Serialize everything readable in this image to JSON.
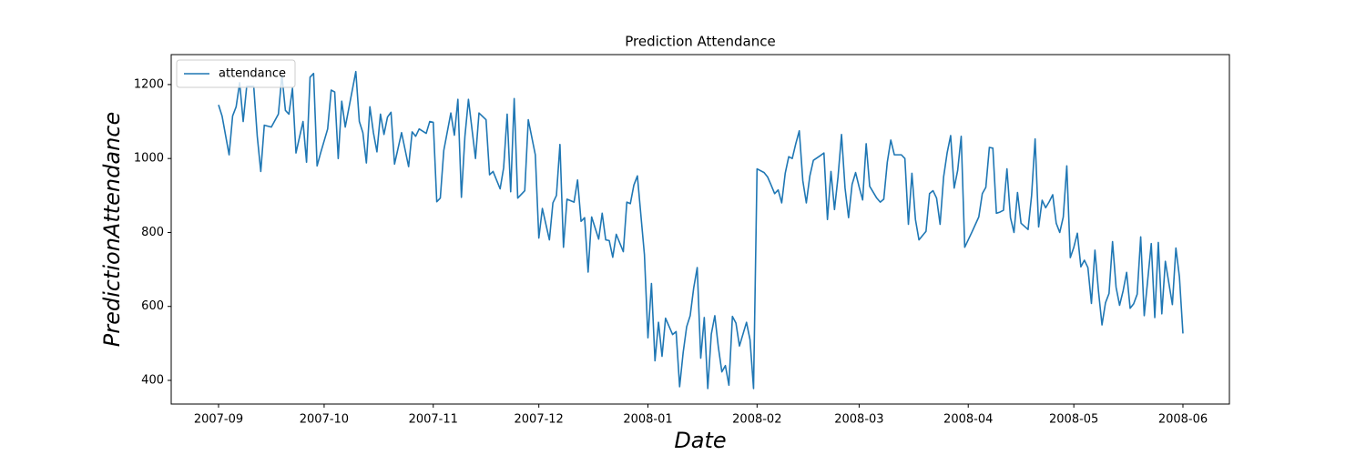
{
  "chart_data": {
    "type": "line",
    "title": "Prediction Attendance",
    "x_label": "Date",
    "y_label": "PredictionAttendance",
    "legend": "upper left",
    "grid": false,
    "x": [
      0,
      1,
      3,
      4,
      5,
      6,
      7,
      8,
      10,
      11,
      12,
      13,
      15,
      17,
      18,
      19,
      20,
      21,
      22,
      24,
      25,
      26,
      27,
      28,
      29,
      31,
      32,
      33,
      34,
      35,
      36,
      39,
      40,
      41,
      42,
      43,
      44,
      45,
      46,
      47,
      48,
      49,
      50,
      52,
      54,
      55,
      56,
      57,
      59,
      60,
      61,
      62,
      63,
      64,
      66,
      67,
      68,
      69,
      70,
      71,
      73,
      74,
      76,
      77,
      78,
      80,
      81,
      82,
      83,
      84,
      85,
      87,
      88,
      90,
      91,
      92,
      94,
      95,
      96,
      97,
      98,
      99,
      101,
      102,
      103,
      104,
      105,
      106,
      108,
      109,
      110,
      111,
      112,
      113,
      115,
      116,
      117,
      118,
      119,
      121,
      122,
      123,
      124,
      125,
      126,
      127,
      129,
      130,
      131,
      132,
      133,
      134,
      135,
      136,
      137,
      138,
      139,
      140,
      141,
      142,
      143,
      144,
      145,
      146,
      147,
      148,
      150,
      151,
      152,
      153,
      155,
      156,
      157,
      158,
      159,
      160,
      161,
      162,
      163,
      164,
      165,
      166,
      167,
      168,
      169,
      171,
      172,
      173,
      174,
      175,
      176,
      177,
      178,
      179,
      180,
      181,
      182,
      183,
      184,
      185,
      187,
      188,
      189,
      190,
      191,
      192,
      194,
      195,
      196,
      197,
      198,
      199,
      201,
      202,
      203,
      204,
      205,
      206,
      207,
      208,
      209,
      210,
      211,
      212,
      214,
      216,
      217,
      218,
      219,
      220,
      221,
      222,
      223,
      224,
      225,
      226,
      227,
      228,
      230,
      231,
      232,
      233,
      234,
      235,
      236,
      237,
      238,
      239,
      240,
      241,
      242,
      243,
      244,
      245,
      246,
      247,
      248,
      249,
      250,
      251,
      252,
      253,
      254,
      255,
      256,
      257,
      258,
      259,
      260,
      261,
      262,
      263,
      264,
      265,
      266,
      267,
      268,
      269,
      270,
      271,
      272,
      273,
      274
    ],
    "series": [
      {
        "name": "attendance",
        "color": "#1f77b4",
        "values": [
          1145,
          1115,
          1010,
          1115,
          1140,
          1205,
          1100,
          1195,
          1195,
          1060,
          965,
          1090,
          1085,
          1120,
          1225,
          1130,
          1120,
          1190,
          1015,
          1100,
          990,
          1220,
          1230,
          980,
          1015,
          1080,
          1185,
          1180,
          1000,
          1155,
          1085,
          1235,
          1100,
          1070,
          988,
          1140,
          1070,
          1018,
          1120,
          1065,
          1112,
          1125,
          985,
          1070,
          978,
          1072,
          1060,
          1080,
          1068,
          1100,
          1098,
          883,
          893,
          1022,
          1123,
          1063,
          1160,
          895,
          1060,
          1160,
          1000,
          1123,
          1105,
          956,
          965,
          918,
          975,
          1120,
          910,
          1162,
          893,
          913,
          1105,
          1010,
          785,
          865,
          780,
          880,
          900,
          1038,
          760,
          890,
          882,
          942,
          830,
          840,
          693,
          842,
          782,
          852,
          780,
          778,
          733,
          795,
          748,
          882,
          878,
          928,
          953,
          740,
          515,
          662,
          453,
          557,
          465,
          568,
          524,
          532,
          383,
          475,
          545,
          575,
          650,
          705,
          460,
          570,
          378,
          525,
          575,
          490,
          423,
          440,
          387,
          573,
          555,
          493,
          557,
          510,
          378,
          972,
          962,
          950,
          928,
          905,
          915,
          880,
          960,
          1005,
          1000,
          1040,
          1075,
          940,
          880,
          953,
          995,
          1008,
          1015,
          835,
          965,
          862,
          950,
          1065,
          920,
          840,
          930,
          962,
          923,
          888,
          1040,
          925,
          893,
          882,
          890,
          990,
          1050,
          1010,
          1010,
          1000,
          822,
          960,
          835,
          780,
          803,
          905,
          913,
          893,
          822,
          950,
          1015,
          1062,
          920,
          968,
          1060,
          760,
          800,
          842,
          905,
          922,
          1030,
          1028,
          852,
          855,
          860,
          972,
          840,
          800,
          908,
          825,
          808,
          900,
          1053,
          815,
          887,
          867,
          883,
          902,
          825,
          800,
          842,
          980,
          732,
          760,
          798,
          707,
          725,
          705,
          608,
          752,
          642,
          550,
          610,
          635,
          775,
          652,
          603,
          642,
          692,
          595,
          607,
          633,
          788,
          575,
          672,
          770,
          570,
          773,
          580,
          722,
          663,
          605,
          758,
          680,
          527
        ]
      }
    ],
    "xlim": [
      -13.45,
      287.2
    ],
    "xticks": [
      {
        "value": 0,
        "label": "2007-09"
      },
      {
        "value": 30,
        "label": "2007-10"
      },
      {
        "value": 61,
        "label": "2007-11"
      },
      {
        "value": 91,
        "label": "2007-12"
      },
      {
        "value": 122,
        "label": "2008-01"
      },
      {
        "value": 153,
        "label": "2008-02"
      },
      {
        "value": 182,
        "label": "2008-03"
      },
      {
        "value": 213,
        "label": "2008-04"
      },
      {
        "value": 243,
        "label": "2008-05"
      },
      {
        "value": 274,
        "label": "2008-06"
      }
    ],
    "ylim": [
      336,
      1281
    ],
    "yticks": [
      400,
      600,
      800,
      1000,
      1200
    ]
  }
}
